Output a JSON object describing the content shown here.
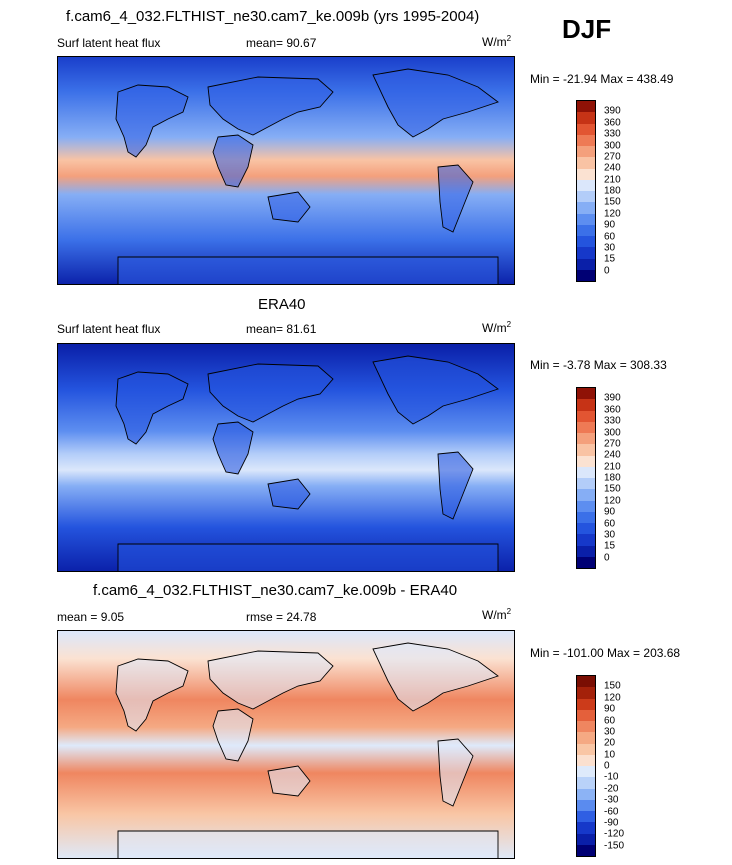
{
  "season": "DJF",
  "panels": [
    {
      "title": "f.cam6_4_032.FLTHIST_ne30.cam7_ke.009b (yrs 1995-2004)",
      "left_label": "Surf latent heat flux",
      "mid_label": "mean=  90.67",
      "units": "W/m",
      "units_exp": "2",
      "minmax": "Min = -21.94 Max = 438.49",
      "colorbar_levels": [
        "0",
        "15",
        "30",
        "60",
        "90",
        "120",
        "150",
        "180",
        "210",
        "240",
        "270",
        "300",
        "330",
        "360",
        "390"
      ],
      "field": "model"
    },
    {
      "title": "ERA40",
      "left_label": "Surf latent heat flux",
      "mid_label": "mean=  81.61",
      "units": "W/m",
      "units_exp": "2",
      "minmax": "Min =  -3.78 Max = 308.33",
      "colorbar_levels": [
        "0",
        "15",
        "30",
        "60",
        "90",
        "120",
        "150",
        "180",
        "210",
        "240",
        "270",
        "300",
        "330",
        "360",
        "390"
      ],
      "field": "obs"
    },
    {
      "title": "f.cam6_4_032.FLTHIST_ne30.cam7_ke.009b - ERA40",
      "left_label": "mean =   9.05",
      "mid_label": "rmse =  24.78",
      "units": "W/m",
      "units_exp": "2",
      "minmax": "Min = -101.00 Max = 203.68",
      "colorbar_levels": [
        "-150",
        "-120",
        "-90",
        "-60",
        "-30",
        "-20",
        "-10",
        "0",
        "10",
        "20",
        "30",
        "60",
        "90",
        "120",
        "150"
      ],
      "field": "diff"
    }
  ],
  "colors": {
    "abs_scale": [
      "#000074",
      "#0a1fa8",
      "#1638c9",
      "#2454de",
      "#3b70e8",
      "#5d8ef0",
      "#86aef5",
      "#b3cdf9",
      "#dbe7fb",
      "#fbe2d2",
      "#f9c3a4",
      "#f4a07c",
      "#ee7a55",
      "#e25532",
      "#c63316",
      "#8f1206"
    ],
    "diff_scale": [
      "#000074",
      "#0a1fa8",
      "#1638c9",
      "#2f5fe3",
      "#5a8bef",
      "#8cb3f5",
      "#b9d2f9",
      "#deeafb",
      "#fbe0cf",
      "#f9c6a5",
      "#f5a983",
      "#ef8660",
      "#e4603b",
      "#cc3b1a",
      "#a4210a",
      "#7a0e03"
    ]
  },
  "chart_data": [
    {
      "type": "heatmap",
      "title": "f.cam6_4_032.FLTHIST_ne30.cam7_ke.009b (yrs 1995-2004)",
      "variable": "Surf latent heat flux",
      "units": "W/m2",
      "mean": 90.67,
      "min": -21.94,
      "max": 438.49,
      "contour_levels": [
        0,
        15,
        30,
        60,
        90,
        120,
        150,
        180,
        210,
        240,
        270,
        300,
        330,
        360,
        390
      ]
    },
    {
      "type": "heatmap",
      "title": "ERA40",
      "variable": "Surf latent heat flux",
      "units": "W/m2",
      "mean": 81.61,
      "min": -3.78,
      "max": 308.33,
      "contour_levels": [
        0,
        15,
        30,
        60,
        90,
        120,
        150,
        180,
        210,
        240,
        270,
        300,
        330,
        360,
        390
      ]
    },
    {
      "type": "heatmap",
      "title": "f.cam6_4_032.FLTHIST_ne30.cam7_ke.009b - ERA40",
      "units": "W/m2",
      "mean": 9.05,
      "rmse": 24.78,
      "min": -101.0,
      "max": 203.68,
      "contour_levels": [
        -150,
        -120,
        -90,
        -60,
        -30,
        -20,
        -10,
        0,
        10,
        20,
        30,
        60,
        90,
        120,
        150
      ]
    }
  ]
}
